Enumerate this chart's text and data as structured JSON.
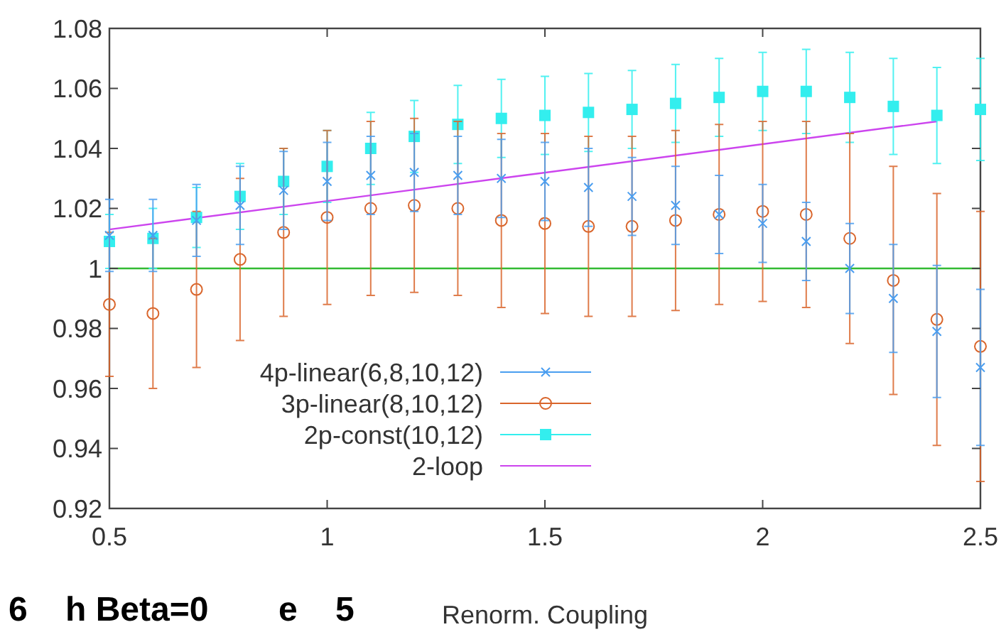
{
  "chart_data": {
    "type": "line",
    "xlabel": "Renorm. Coupling",
    "xlim": [
      0.5,
      2.5
    ],
    "xticks": [
      0.5,
      1,
      1.5,
      2,
      2.5
    ],
    "ylim": [
      0.92,
      1.08
    ],
    "yticks": [
      0.92,
      0.94,
      0.96,
      0.98,
      1,
      1.02,
      1.04,
      1.06,
      1.08
    ],
    "grid": false,
    "legend": "bottom",
    "x": [
      0.5,
      0.6,
      0.7,
      0.8,
      0.9,
      1.0,
      1.1,
      1.2,
      1.3,
      1.4,
      1.5,
      1.6,
      1.7,
      1.8,
      1.9,
      2.0,
      2.1,
      2.2,
      2.3,
      2.4,
      2.5
    ],
    "series": [
      {
        "name": "4p-linear(6,8,10,12)",
        "type": "scatter",
        "color": "#4a9ef0",
        "marker": "cross",
        "values": [
          1.011,
          1.011,
          1.016,
          1.021,
          1.026,
          1.029,
          1.031,
          1.032,
          1.031,
          1.03,
          1.029,
          1.027,
          1.024,
          1.021,
          1.018,
          1.015,
          1.009,
          1.0,
          0.99,
          0.979,
          0.967
        ],
        "errors": [
          0.012,
          0.012,
          0.012,
          0.013,
          0.013,
          0.013,
          0.013,
          0.013,
          0.013,
          0.013,
          0.013,
          0.013,
          0.013,
          0.013,
          0.013,
          0.013,
          0.013,
          0.015,
          0.018,
          0.022,
          0.026
        ]
      },
      {
        "name": "3p-linear(8,10,12)",
        "type": "scatter",
        "color": "#d9652b",
        "marker": "circle",
        "values": [
          0.988,
          0.985,
          0.993,
          1.003,
          1.012,
          1.017,
          1.02,
          1.021,
          1.02,
          1.016,
          1.015,
          1.014,
          1.014,
          1.016,
          1.018,
          1.019,
          1.018,
          1.01,
          0.996,
          0.983,
          0.974
        ],
        "errors": [
          0.024,
          0.025,
          0.026,
          0.027,
          0.028,
          0.029,
          0.029,
          0.029,
          0.029,
          0.029,
          0.03,
          0.03,
          0.03,
          0.03,
          0.03,
          0.03,
          0.031,
          0.035,
          0.038,
          0.042,
          0.045
        ]
      },
      {
        "name": "2p-const(10,12)",
        "type": "scatter",
        "color": "#33eeee",
        "marker": "square",
        "values": [
          1.009,
          1.01,
          1.017,
          1.024,
          1.029,
          1.034,
          1.04,
          1.044,
          1.048,
          1.05,
          1.051,
          1.052,
          1.053,
          1.055,
          1.057,
          1.059,
          1.059,
          1.057,
          1.054,
          1.051,
          1.053
        ],
        "errors": [
          0.009,
          0.01,
          0.01,
          0.011,
          0.011,
          0.012,
          0.012,
          0.012,
          0.013,
          0.013,
          0.013,
          0.013,
          0.013,
          0.013,
          0.013,
          0.013,
          0.014,
          0.015,
          0.016,
          0.016,
          0.017
        ]
      },
      {
        "name": "2-loop",
        "color": "#cc44ee",
        "marker": "none",
        "line_style": "solid",
        "x": [
          0.5,
          1.45,
          2.4
        ],
        "values": [
          1.013,
          1.031,
          1.049
        ]
      }
    ],
    "ref_lines": [
      {
        "axis": "y",
        "value": 1,
        "color": "#33bb33",
        "line_style": "solid"
      }
    ],
    "annotations": [
      "6",
      "h Beta=0",
      "e",
      "5"
    ]
  }
}
